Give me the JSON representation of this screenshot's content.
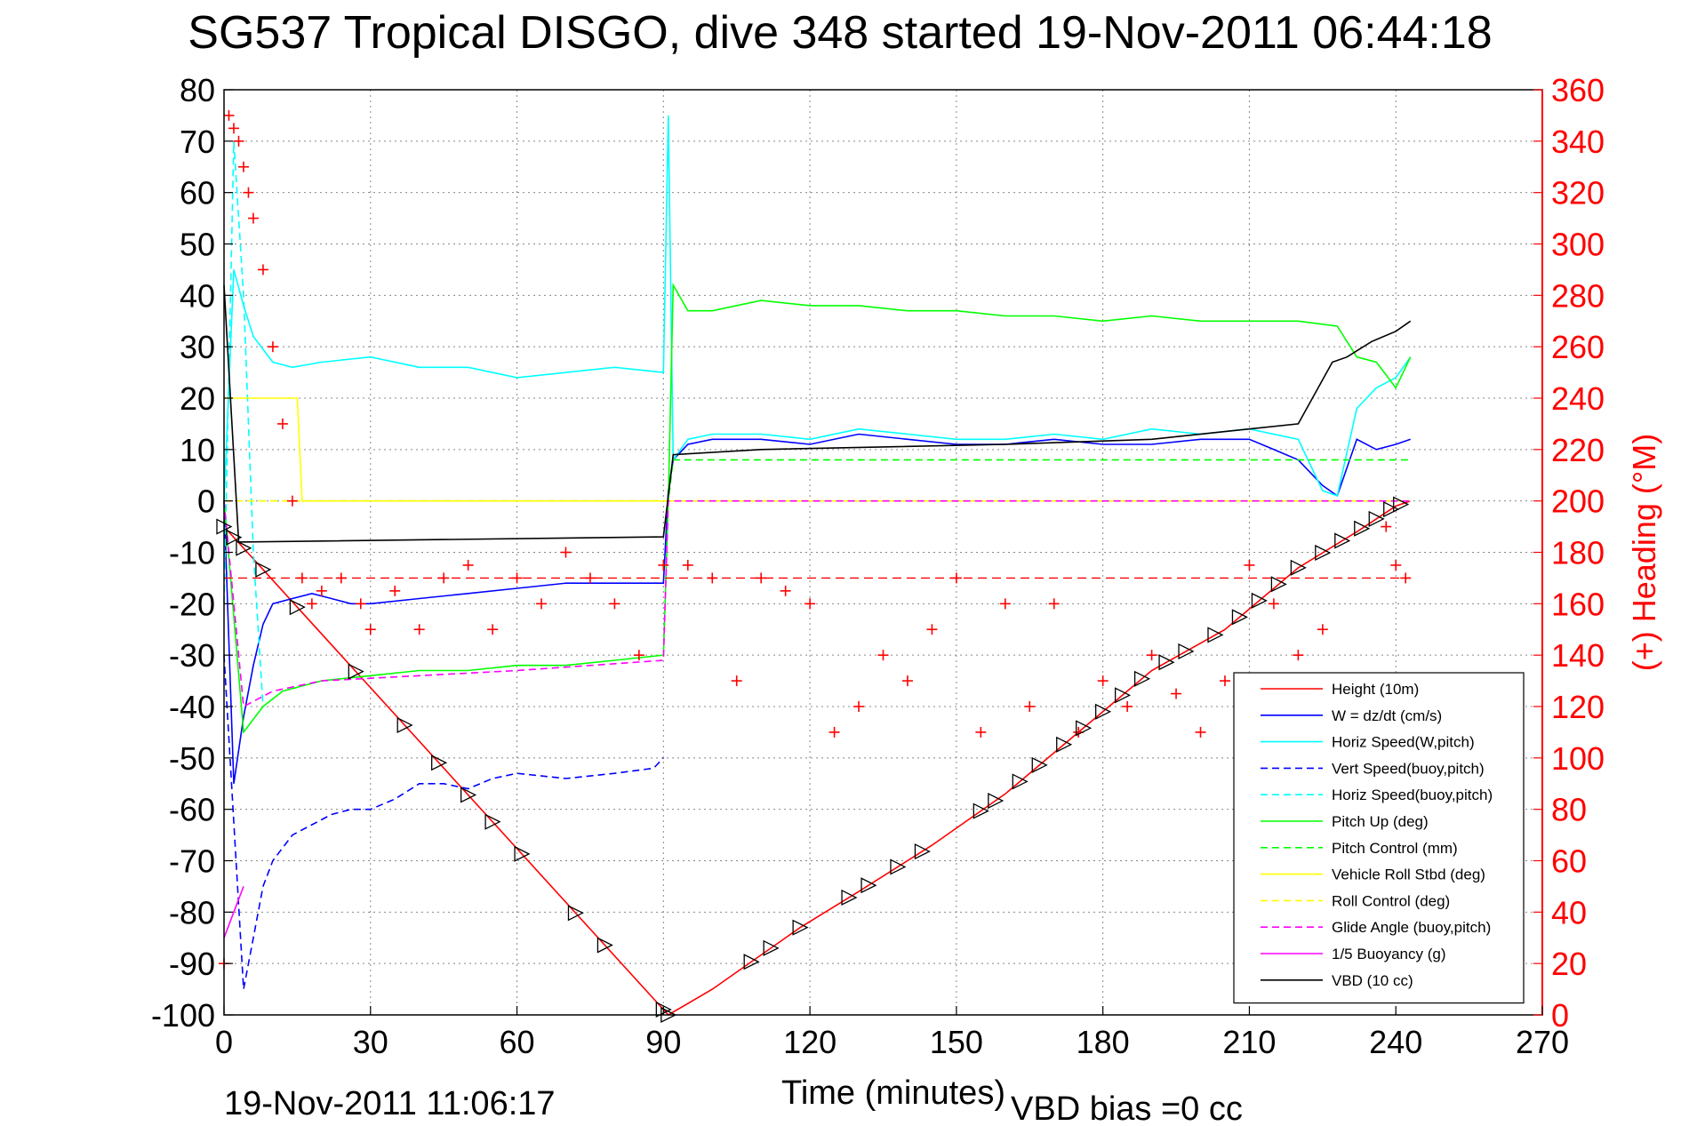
{
  "title": "SG537 Tropical DISGO, dive 348 started 19-Nov-2011 06:44:18",
  "footer_left": "19-Nov-2011 11:06:17",
  "footer_right": "VBD bias =0 cc",
  "chart_data": {
    "type": "line",
    "title": "SG537 Tropical DISGO, dive 348 started 19-Nov-2011 06:44:18",
    "xlabel": "Time (minutes)",
    "ylabel": "",
    "ylabel_right": "(+) Heading (°M)",
    "xlim": [
      0,
      270
    ],
    "ylim": [
      -100,
      80
    ],
    "ylim_right": [
      0,
      360
    ],
    "xticks": [
      0,
      30,
      60,
      90,
      120,
      150,
      180,
      210,
      240,
      270
    ],
    "yticks": [
      80,
      70,
      60,
      50,
      40,
      30,
      20,
      10,
      0,
      -10,
      -20,
      -30,
      -40,
      -50,
      -60,
      -70,
      -80,
      -90,
      -100
    ],
    "yticks_right": [
      360,
      340,
      320,
      300,
      280,
      260,
      240,
      220,
      200,
      180,
      160,
      140,
      120,
      100,
      80,
      60,
      40,
      20,
      0
    ],
    "grid": true,
    "legend_position": "lower-right",
    "colors": {
      "red": "#ff0000",
      "blue": "#0000ff",
      "cyan": "#00ffff",
      "green": "#00ff00",
      "yellow": "#ffff00",
      "magenta": "#ff00ff",
      "black": "#000000"
    },
    "series": [
      {
        "name": "Height (10m)",
        "color": "#ff0000",
        "style": "solid",
        "x": [
          0,
          91,
          100,
          109,
          118,
          130,
          145,
          160,
          175,
          190,
          205,
          220,
          232,
          240,
          243
        ],
        "y": [
          -5,
          -100,
          -95,
          -89,
          -83,
          -76,
          -67,
          -57,
          -45,
          -33,
          -25,
          -13,
          -6,
          -1,
          0
        ]
      },
      {
        "name": "W = dz/dt (cm/s)",
        "color": "#0000ff",
        "style": "solid",
        "x": [
          0,
          2,
          4,
          6,
          8,
          10,
          14,
          18,
          22,
          26,
          30,
          40,
          50,
          60,
          70,
          80,
          90,
          91,
          92,
          95,
          100,
          110,
          120,
          130,
          140,
          150,
          160,
          170,
          180,
          190,
          200,
          210,
          215,
          220,
          225,
          228,
          232,
          236,
          240,
          243
        ],
        "y": [
          0,
          -55,
          -42,
          -32,
          -24,
          -20,
          -19,
          -18,
          -19,
          -20,
          -20,
          -19,
          -18,
          -17,
          -16,
          -16,
          -16,
          2,
          8,
          11,
          12,
          12,
          11,
          13,
          12,
          11,
          11,
          12,
          11,
          11,
          12,
          12,
          10,
          8,
          3,
          1,
          12,
          10,
          11,
          12
        ]
      },
      {
        "name": "Horiz Speed(W,pitch)",
        "color": "#00ffff",
        "style": "solid",
        "x": [
          0,
          2,
          4,
          6,
          10,
          14,
          20,
          30,
          40,
          50,
          60,
          70,
          80,
          90,
          91,
          92,
          95,
          100,
          110,
          120,
          130,
          140,
          150,
          160,
          170,
          180,
          190,
          200,
          210,
          220,
          225,
          228,
          232,
          236,
          240,
          243
        ],
        "y": [
          0,
          45,
          38,
          32,
          27,
          26,
          27,
          28,
          26,
          26,
          24,
          25,
          26,
          25,
          75,
          8,
          12,
          13,
          13,
          12,
          14,
          13,
          12,
          12,
          13,
          12,
          14,
          13,
          14,
          12,
          2,
          1,
          18,
          22,
          24,
          28
        ]
      },
      {
        "name": "Vert Speed(buoy,pitch)",
        "color": "#0000ff",
        "style": "dashed",
        "x": [
          0,
          4,
          6,
          8,
          10,
          14,
          18,
          22,
          26,
          30,
          35,
          40,
          45,
          50,
          55,
          60,
          70,
          80,
          88,
          90
        ],
        "y": [
          -30,
          -95,
          -85,
          -75,
          -70,
          -65,
          -63,
          -61,
          -60,
          -60,
          -58,
          -55,
          -55,
          -56,
          -54,
          -53,
          -54,
          -53,
          -52,
          -50
        ]
      },
      {
        "name": "Horiz Speed(buoy,pitch)",
        "color": "#00ffff",
        "style": "dashed",
        "x": [
          0,
          2,
          4,
          6,
          8
        ],
        "y": [
          -20,
          70,
          40,
          -10,
          -40
        ]
      },
      {
        "name": "Pitch Up (deg)",
        "color": "#00ff00",
        "style": "solid",
        "x": [
          0,
          4,
          8,
          12,
          16,
          20,
          30,
          40,
          50,
          60,
          70,
          80,
          90,
          91,
          92,
          95,
          100,
          110,
          120,
          130,
          140,
          150,
          160,
          170,
          180,
          190,
          200,
          210,
          220,
          228,
          232,
          236,
          240,
          243
        ],
        "y": [
          0,
          -45,
          -40,
          -37,
          -36,
          -35,
          -34,
          -33,
          -33,
          -32,
          -32,
          -31,
          -30,
          0,
          42,
          37,
          37,
          39,
          38,
          38,
          37,
          37,
          36,
          36,
          35,
          36,
          35,
          35,
          35,
          34,
          28,
          27,
          22,
          28
        ]
      },
      {
        "name": "Pitch Control (mm)",
        "color": "#00ff00",
        "style": "dashed",
        "x": [
          0,
          91,
          92,
          243
        ],
        "y": [
          0,
          0,
          8,
          8
        ]
      },
      {
        "name": "Vehicle Roll Stbd (deg)",
        "color": "#ffff00",
        "style": "solid",
        "x": [
          0,
          15,
          16,
          90,
          91,
          243
        ],
        "y": [
          20,
          20,
          0,
          0,
          0,
          0
        ]
      },
      {
        "name": "Roll Control (deg)",
        "color": "#ffff00",
        "style": "dashed",
        "x": [
          0,
          243
        ],
        "y": [
          0,
          0
        ]
      },
      {
        "name": "Glide Angle (buoy,pitch)",
        "color": "#ff00ff",
        "style": "dashed",
        "x": [
          0,
          4,
          10,
          20,
          40,
          60,
          90,
          91,
          243
        ],
        "y": [
          0,
          -40,
          -37,
          -35,
          -34,
          -33,
          -31,
          0,
          0
        ]
      },
      {
        "name": "1/5 Buoyancy (g)",
        "color": "#ff00ff",
        "style": "solid",
        "x": [
          0,
          2,
          4
        ],
        "y": [
          -85,
          -80,
          -75
        ]
      },
      {
        "name": "VBD (10 cc)",
        "color": "#000000",
        "style": "solid",
        "x": [
          0,
          3,
          90,
          92,
          110,
          160,
          190,
          220,
          227,
          230,
          235,
          240,
          243
        ],
        "y": [
          42,
          -8,
          -7,
          9,
          10,
          11,
          12,
          15,
          27,
          28,
          31,
          33,
          35
        ]
      }
    ],
    "heading": {
      "name": "(+) Heading",
      "color": "#ff0000",
      "marker": "+",
      "axis": "right",
      "x": [
        0,
        1,
        2,
        3,
        4,
        5,
        6,
        8,
        10,
        12,
        14,
        16,
        18,
        20,
        24,
        28,
        30,
        35,
        40,
        45,
        50,
        55,
        60,
        65,
        70,
        75,
        80,
        85,
        90,
        95,
        100,
        105,
        110,
        115,
        120,
        125,
        130,
        135,
        140,
        145,
        150,
        155,
        160,
        165,
        170,
        175,
        180,
        185,
        190,
        195,
        200,
        205,
        210,
        215,
        220,
        225,
        230,
        235,
        238,
        240,
        242
      ],
      "y": [
        20,
        350,
        345,
        340,
        330,
        320,
        310,
        290,
        260,
        230,
        200,
        170,
        160,
        165,
        170,
        160,
        150,
        165,
        150,
        170,
        175,
        150,
        170,
        160,
        180,
        170,
        160,
        140,
        175,
        175,
        170,
        130,
        170,
        165,
        160,
        110,
        120,
        140,
        130,
        150,
        170,
        110,
        160,
        120,
        160,
        110,
        130,
        120,
        140,
        125,
        110,
        130,
        175,
        160,
        140,
        150,
        130,
        120,
        190,
        175,
        170
      ]
    },
    "heading_ref": 170,
    "markers_x": [
      0,
      2,
      4,
      8,
      15,
      27,
      37,
      44,
      50,
      55,
      61,
      72,
      78,
      90,
      91,
      108,
      112,
      118,
      128,
      132,
      138,
      143,
      155,
      158,
      163,
      167,
      172,
      176,
      180,
      184,
      188,
      193,
      197,
      203,
      208,
      212,
      216,
      220,
      225,
      229,
      233,
      236,
      239,
      241
    ]
  }
}
